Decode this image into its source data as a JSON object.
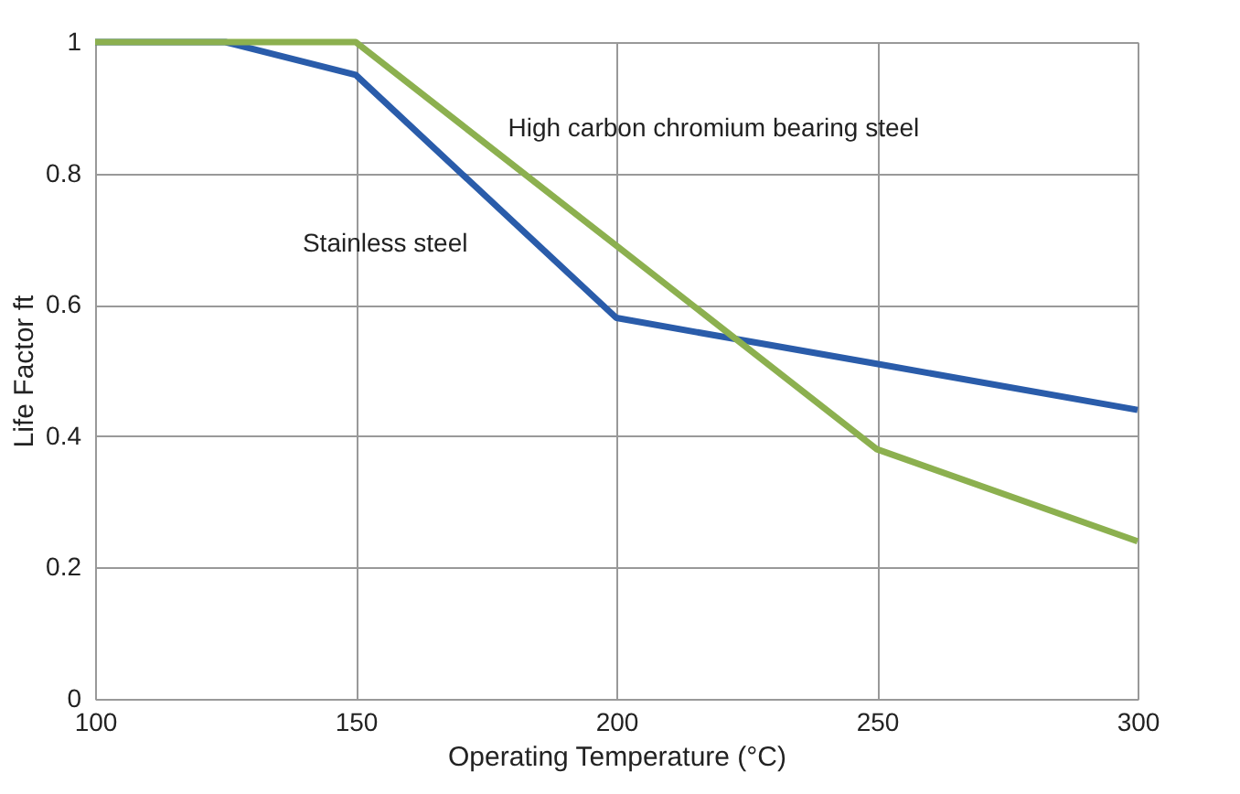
{
  "chart_data": {
    "type": "line",
    "xlabel": "Operating Temperature (°C)",
    "ylabel": "Life Factor ft",
    "series": [
      {
        "name": "Stainless steel",
        "color": "#2a5caa",
        "x": [
          100,
          125,
          150,
          200,
          250,
          300
        ],
        "values": [
          1,
          1,
          0.95,
          0.58,
          0.51,
          0.44
        ]
      },
      {
        "name": "High carbon chromium bearing steel",
        "color": "#8cb04f",
        "x": [
          100,
          150,
          200,
          250,
          300
        ],
        "values": [
          1,
          1,
          0.69,
          0.38,
          0.24
        ]
      }
    ],
    "xlim": [
      100,
      300
    ],
    "xticks": [
      100,
      150,
      200,
      250,
      300
    ],
    "ylim": [
      0,
      1
    ],
    "yticks": [
      0,
      0.2,
      0.4,
      0.6,
      0.8,
      1
    ],
    "grid": true,
    "marker": "none",
    "line_style": "solid"
  }
}
